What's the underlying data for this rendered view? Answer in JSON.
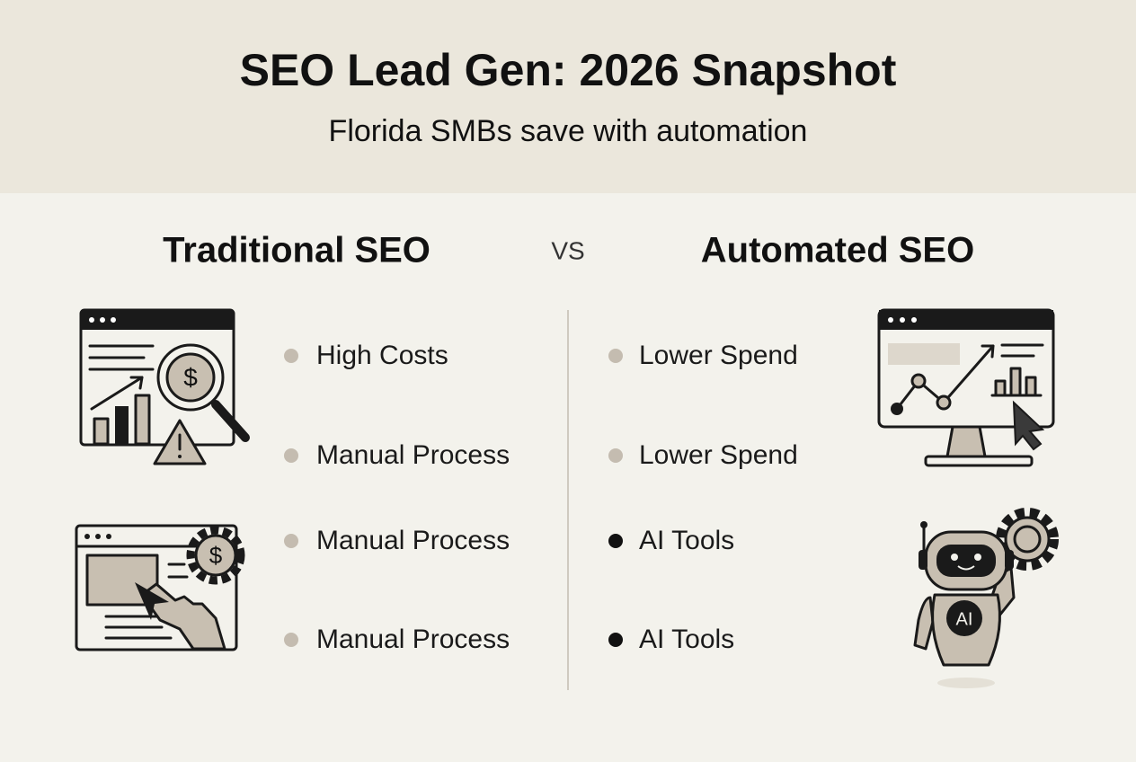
{
  "header": {
    "title": "SEO Lead Gen: 2026 Snapshot",
    "subtitle": "Florida SMBs save with automation"
  },
  "comparison": {
    "left": {
      "heading": "Traditional SEO",
      "items": [
        "High Costs",
        "Manual Process",
        "Manual Process",
        "Manual Process"
      ]
    },
    "separator": "VS",
    "right": {
      "heading": "Automated SEO",
      "items": [
        "Lower Spend",
        "Lower Spend",
        "AI Tools",
        "AI Tools"
      ]
    }
  },
  "icons": {
    "currency_symbol": "$",
    "robot_label": "AI"
  }
}
